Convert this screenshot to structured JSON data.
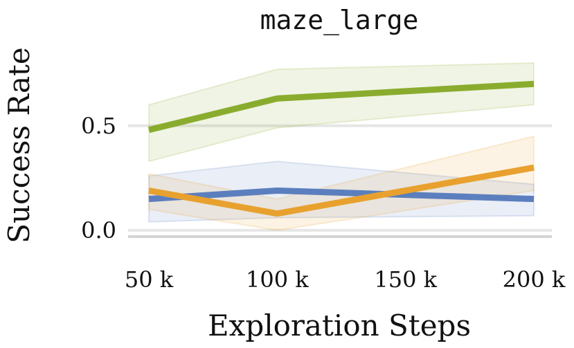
{
  "chart_data": {
    "type": "line",
    "title": "maze_large",
    "xlabel": "Exploration Steps",
    "ylabel": "Success Rate",
    "x": [
      50000,
      100000,
      150000,
      200000
    ],
    "x_tick_labels": [
      "50 k",
      "100 k",
      "150 k",
      "200 k"
    ],
    "y_ticks": [
      0.0,
      0.5
    ],
    "y_tick_labels": [
      "0.0",
      "0.5"
    ],
    "xlim": [
      50000,
      200000
    ],
    "ylim": [
      -0.03,
      0.82
    ],
    "grid": true,
    "series": [
      {
        "color": "#8aac2e",
        "x": [
          50000,
          100000,
          200000
        ],
        "values": [
          0.48,
          0.63,
          0.7
        ],
        "lower": [
          0.33,
          0.49,
          0.6
        ],
        "upper": [
          0.6,
          0.77,
          0.8
        ]
      },
      {
        "color": "#5b7fbe",
        "x": [
          50000,
          100000,
          200000
        ],
        "values": [
          0.15,
          0.19,
          0.15
        ],
        "lower": [
          0.04,
          0.06,
          0.07
        ],
        "upper": [
          0.26,
          0.33,
          0.22
        ]
      },
      {
        "color": "#e8a12e",
        "x": [
          50000,
          100000,
          200000
        ],
        "values": [
          0.19,
          0.08,
          0.3
        ],
        "lower": [
          0.1,
          0.0,
          0.19
        ],
        "upper": [
          0.27,
          0.15,
          0.45
        ]
      }
    ]
  }
}
